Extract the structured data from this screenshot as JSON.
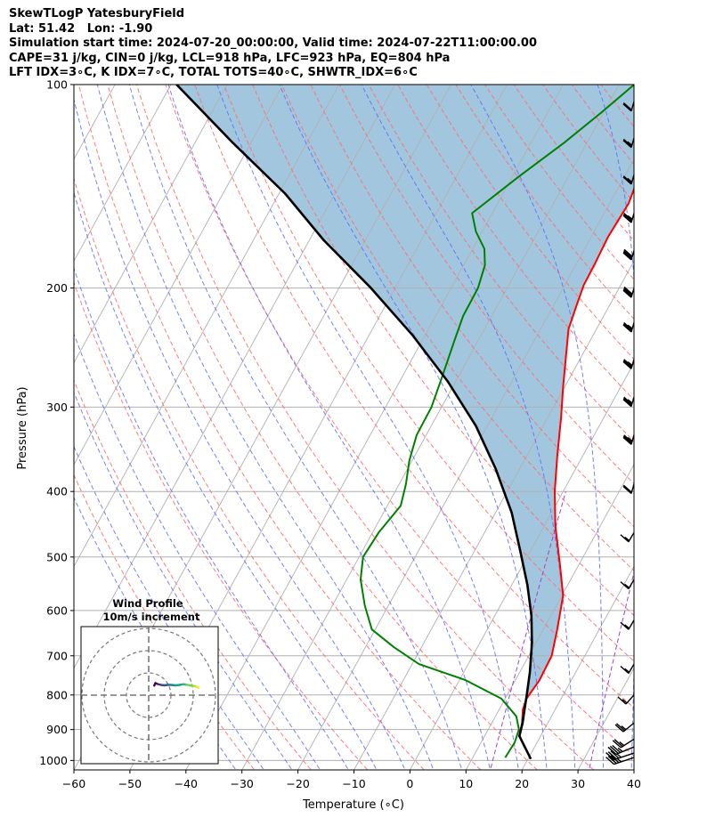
{
  "header": {
    "line1": "SkewTLogP YatesburyField",
    "line2": "Lat: 51.42   Lon: -1.90",
    "line3": "Simulation start time: 2024-07-20_00:00:00, Valid time: 2024-07-22T11:00:00.00",
    "line4": "CAPE=31 j/kg, CIN=0 j/kg, LCL=918 hPa, LFC=923 hPa, EQ=804 hPa",
    "line5": "LFT IDX=3∘C, K IDX=7∘C, TOTAL TOTS=40∘C, SHWTR_IDX=6∘C"
  },
  "chart_data": {
    "type": "line",
    "xlabel": "Temperature (∘C)",
    "ylabel": "Pressure (hPa)",
    "xlim": [
      -60,
      40
    ],
    "ylim": [
      1050,
      100
    ],
    "yscale": "log",
    "xticks": [
      "−60",
      "−50",
      "−40",
      "−30",
      "−20",
      "−10",
      "0",
      "10",
      "20",
      "30",
      "40"
    ],
    "yticks": [
      "100",
      "200",
      "300",
      "400",
      "500",
      "600",
      "700",
      "800",
      "900",
      "1000"
    ],
    "series": [
      {
        "role": "temperature",
        "color": "#ff0000",
        "points": [
          [
            20.5,
            995
          ],
          [
            16.2,
            920
          ],
          [
            15.4,
            880
          ],
          [
            14.2,
            840
          ],
          [
            13.8,
            810
          ],
          [
            14.3,
            760
          ],
          [
            14.1,
            700
          ],
          [
            12.5,
            640
          ],
          [
            10.2,
            570
          ],
          [
            6.4,
            510
          ],
          [
            2.0,
            450
          ],
          [
            -1.5,
            400
          ],
          [
            -4.5,
            355
          ],
          [
            -7.7,
            310
          ],
          [
            -10.3,
            280
          ],
          [
            -13.0,
            250
          ],
          [
            -15.0,
            230
          ],
          [
            -16.0,
            210
          ],
          [
            -16.6,
            198
          ],
          [
            -16.7,
            185
          ],
          [
            -17.0,
            168
          ],
          [
            -16.6,
            150
          ],
          [
            -17.7,
            133
          ],
          [
            -19.3,
            120
          ],
          [
            -21.1,
            110
          ],
          [
            -22.2,
            100
          ]
        ]
      },
      {
        "role": "dewpoint",
        "color": "#008000",
        "points": [
          [
            15.8,
            990
          ],
          [
            16.0,
            940
          ],
          [
            15.5,
            900
          ],
          [
            13.7,
            860
          ],
          [
            9.3,
            810
          ],
          [
            1.0,
            760
          ],
          [
            -8.8,
            720
          ],
          [
            -14.9,
            680
          ],
          [
            -20.6,
            640
          ],
          [
            -24.2,
            590
          ],
          [
            -27.5,
            540
          ],
          [
            -29.3,
            500
          ],
          [
            -28.9,
            460
          ],
          [
            -27.6,
            420
          ],
          [
            -28.8,
            390
          ],
          [
            -30.5,
            360
          ],
          [
            -31.7,
            330
          ],
          [
            -31.8,
            300
          ],
          [
            -32.9,
            270
          ],
          [
            -34.2,
            240
          ],
          [
            -35.1,
            220
          ],
          [
            -35.2,
            200
          ],
          [
            -36.2,
            185
          ],
          [
            -37.9,
            175
          ],
          [
            -41.1,
            165
          ],
          [
            -43.6,
            155
          ],
          [
            -38.9,
            137
          ],
          [
            -34.1,
            122
          ],
          [
            -30.4,
            110
          ],
          [
            -27.3,
            100
          ]
        ]
      },
      {
        "role": "parcel",
        "color": "#000000",
        "points": [
          [
            20.5,
            995
          ],
          [
            16.2,
            920
          ],
          [
            15.5,
            880
          ],
          [
            14.5,
            840
          ],
          [
            13.5,
            800
          ],
          [
            11.8,
            740
          ],
          [
            9.3,
            670
          ],
          [
            6.5,
            610
          ],
          [
            2.8,
            550
          ],
          [
            -1.8,
            490
          ],
          [
            -7.1,
            430
          ],
          [
            -14.3,
            370
          ],
          [
            -22.0,
            320
          ],
          [
            -31.4,
            275
          ],
          [
            -42.2,
            235
          ],
          [
            -54.3,
            200
          ],
          [
            -67.4,
            170
          ],
          [
            -78.9,
            145
          ],
          [
            -93.2,
            122
          ],
          [
            -109.0,
            100
          ]
        ]
      }
    ],
    "wind_barbs": [
      {
        "p": 990,
        "speed_kt": 35,
        "dir_deg": 230
      },
      {
        "p": 975,
        "speed_kt": 35,
        "dir_deg": 230
      },
      {
        "p": 955,
        "speed_kt": 35,
        "dir_deg": 235
      },
      {
        "p": 930,
        "speed_kt": 25,
        "dir_deg": 245
      },
      {
        "p": 880,
        "speed_kt": 25,
        "dir_deg": 250
      },
      {
        "p": 800,
        "speed_kt": 15,
        "dir_deg": 255
      },
      {
        "p": 720,
        "speed_kt": 15,
        "dir_deg": 260
      },
      {
        "p": 620,
        "speed_kt": 15,
        "dir_deg": 260
      },
      {
        "p": 540,
        "speed_kt": 15,
        "dir_deg": 260
      },
      {
        "p": 460,
        "speed_kt": 15,
        "dir_deg": 260
      },
      {
        "p": 390,
        "speed_kt": 20,
        "dir_deg": 265
      },
      {
        "p": 330,
        "speed_kt": 35,
        "dir_deg": 265
      },
      {
        "p": 290,
        "speed_kt": 35,
        "dir_deg": 265
      },
      {
        "p": 255,
        "speed_kt": 35,
        "dir_deg": 265
      },
      {
        "p": 225,
        "speed_kt": 35,
        "dir_deg": 265
      },
      {
        "p": 200,
        "speed_kt": 40,
        "dir_deg": 265
      },
      {
        "p": 176,
        "speed_kt": 40,
        "dir_deg": 265
      },
      {
        "p": 155,
        "speed_kt": 35,
        "dir_deg": 265
      },
      {
        "p": 136,
        "speed_kt": 25,
        "dir_deg": 265
      },
      {
        "p": 120,
        "speed_kt": 25,
        "dir_deg": 265
      },
      {
        "p": 106,
        "speed_kt": 20,
        "dir_deg": 265
      }
    ],
    "cape_fill_color": "#a3c6df",
    "isotherm_color": "#b0b0b0",
    "dry_adiabat_color": "#ff6b6b",
    "moist_adiabat_color": "#5a6bff",
    "mixing_ratio_color": "#9a44cc",
    "grid": true,
    "inset": {
      "title": "Wind Profile",
      "subtitle": "10m/s increment",
      "rings_ms": [
        10,
        20,
        30
      ],
      "hodograph": [
        [
          2.5,
          4.3
        ],
        [
          3.0,
          5.4
        ],
        [
          4.0,
          5.0
        ],
        [
          5.5,
          4.6
        ],
        [
          7.0,
          4.4
        ],
        [
          8.5,
          4.6
        ],
        [
          10.0,
          4.6
        ],
        [
          12.0,
          4.4
        ],
        [
          14.0,
          4.6
        ],
        [
          15.5,
          4.9
        ],
        [
          17.0,
          4.7
        ],
        [
          18.5,
          4.4
        ],
        [
          20.0,
          4.2
        ],
        [
          21.5,
          3.8
        ],
        [
          22.5,
          3.3
        ]
      ],
      "hodograph_colors": [
        "#440154",
        "#482878",
        "#3e4a89",
        "#31688e",
        "#26828e",
        "#1f9e89",
        "#35b779",
        "#6ece58",
        "#b5de2b",
        "#fde725"
      ]
    }
  }
}
